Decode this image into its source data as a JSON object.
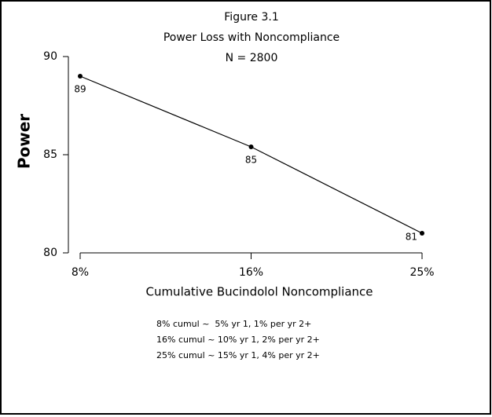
{
  "chart_data": {
    "type": "line",
    "title": [
      "Figure 3.1",
      "Power Loss with Noncompliance",
      "N = 2800"
    ],
    "xlabel": "Cumulative Bucindolol Noncompliance",
    "ylabel": "Power",
    "categories": [
      "8%",
      "16%",
      "25%"
    ],
    "values": [
      89,
      85.4,
      81
    ],
    "value_labels": [
      "89",
      "85",
      "81"
    ],
    "color": "#000000",
    "ylim": [
      80,
      90
    ],
    "yticks": [
      80,
      85,
      90
    ],
    "grid": false,
    "notes": [
      "8% cumul ~  5% yr 1, 1% per yr 2+",
      "16% cumul ~ 10% yr 1, 2% per yr 2+",
      "25% cumul ~ 15% yr 1, 4% per yr 2+"
    ]
  }
}
